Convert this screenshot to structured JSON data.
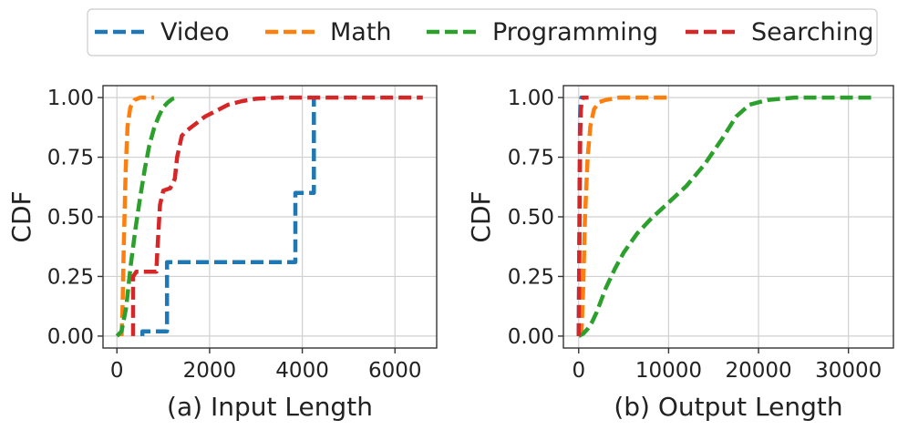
{
  "legend": {
    "entries": [
      {
        "label": "Video",
        "color": "#1f77b4"
      },
      {
        "label": "Math",
        "color": "#ff7f0e"
      },
      {
        "label": "Programming",
        "color": "#2ca02c"
      },
      {
        "label": "Searching",
        "color": "#d62728"
      }
    ]
  },
  "chart_data": [
    {
      "type": "line",
      "title": "",
      "xlabel": "(a) Input Length",
      "ylabel": "CDF",
      "xlim": [
        -300,
        6900
      ],
      "ylim": [
        -0.05,
        1.05
      ],
      "xticks": [
        0,
        2000,
        4000,
        6000
      ],
      "xtick_labels": [
        "0",
        "2000",
        "4000",
        "6000"
      ],
      "yticks": [
        0,
        0.25,
        0.5,
        0.75,
        1.0
      ],
      "ytick_labels": [
        "0.00",
        "0.25",
        "0.50",
        "0.75",
        "1.00"
      ],
      "grid": true,
      "series": [
        {
          "name": "Video",
          "color": "#1f77b4",
          "x": [
            550,
            550,
            1080,
            1080,
            3850,
            3850,
            4250,
            4250
          ],
          "y": [
            0.0,
            0.02,
            0.02,
            0.31,
            0.31,
            0.6,
            0.6,
            1.0
          ]
        },
        {
          "name": "Math",
          "color": "#ff7f0e",
          "x": [
            100,
            120,
            150,
            190,
            230,
            290,
            380,
            500,
            650,
            800
          ],
          "y": [
            0.0,
            0.1,
            0.4,
            0.7,
            0.88,
            0.96,
            0.99,
            1.0,
            1.0,
            1.0
          ]
        },
        {
          "name": "Programming",
          "color": "#2ca02c",
          "x": [
            0,
            100,
            200,
            300,
            400,
            500,
            600,
            700,
            800,
            900,
            1000,
            1100,
            1200,
            1300
          ],
          "y": [
            0.0,
            0.02,
            0.12,
            0.3,
            0.45,
            0.58,
            0.7,
            0.8,
            0.87,
            0.92,
            0.96,
            0.98,
            0.995,
            1.0
          ]
        },
        {
          "name": "Searching",
          "color": "#d62728",
          "x": [
            350,
            350,
            420,
            850,
            870,
            930,
            1000,
            1150,
            1250,
            1300,
            1400,
            1500,
            1700,
            1900,
            2100,
            2400,
            2700,
            3000,
            3500,
            4000,
            5000,
            6600
          ],
          "y": [
            0.0,
            0.25,
            0.27,
            0.27,
            0.35,
            0.55,
            0.61,
            0.62,
            0.66,
            0.75,
            0.84,
            0.86,
            0.89,
            0.92,
            0.94,
            0.97,
            0.985,
            0.995,
            1.0,
            1.0,
            1.0,
            1.0
          ]
        }
      ]
    },
    {
      "type": "line",
      "title": "",
      "xlabel": "(b) Output Length",
      "ylabel": "CDF",
      "xlim": [
        -1700,
        35000
      ],
      "ylim": [
        -0.05,
        1.05
      ],
      "xticks": [
        0,
        10000,
        20000,
        30000
      ],
      "xtick_labels": [
        "0",
        "10000",
        "20000",
        "30000"
      ],
      "yticks": [
        0,
        0.25,
        0.5,
        0.75,
        1.0
      ],
      "ytick_labels": [
        "0.00",
        "0.25",
        "0.50",
        "0.75",
        "1.00"
      ],
      "grid": true,
      "series": [
        {
          "name": "Video",
          "color": "#1f77b4",
          "x": [
            0,
            50,
            100,
            150,
            200,
            300,
            500
          ],
          "y": [
            0.0,
            0.3,
            0.7,
            0.9,
            0.97,
            1.0,
            1.0
          ]
        },
        {
          "name": "Math",
          "color": "#ff7f0e",
          "x": [
            300,
            500,
            700,
            1000,
            1300,
            1700,
            2200,
            3000,
            4500,
            7000,
            10000
          ],
          "y": [
            0.0,
            0.2,
            0.5,
            0.75,
            0.88,
            0.95,
            0.98,
            0.99,
            1.0,
            1.0,
            1.0
          ]
        },
        {
          "name": "Programming",
          "color": "#2ca02c",
          "x": [
            0,
            500,
            1000,
            1500,
            2000,
            3000,
            4000,
            5000,
            6500,
            8000,
            10000,
            12000,
            14000,
            16000,
            17500,
            19000,
            21000,
            24000,
            28000,
            33000
          ],
          "y": [
            0.0,
            0.01,
            0.03,
            0.06,
            0.1,
            0.2,
            0.28,
            0.35,
            0.43,
            0.49,
            0.56,
            0.63,
            0.72,
            0.83,
            0.92,
            0.97,
            0.99,
            1.0,
            1.0,
            1.0
          ]
        },
        {
          "name": "Searching",
          "color": "#d62728",
          "x": [
            0,
            60,
            120,
            180,
            250,
            350,
            500,
            700,
            900,
            1100
          ],
          "y": [
            0.0,
            0.3,
            0.6,
            0.85,
            0.95,
            0.99,
            1.0,
            1.0,
            1.0,
            1.0
          ]
        }
      ]
    }
  ]
}
